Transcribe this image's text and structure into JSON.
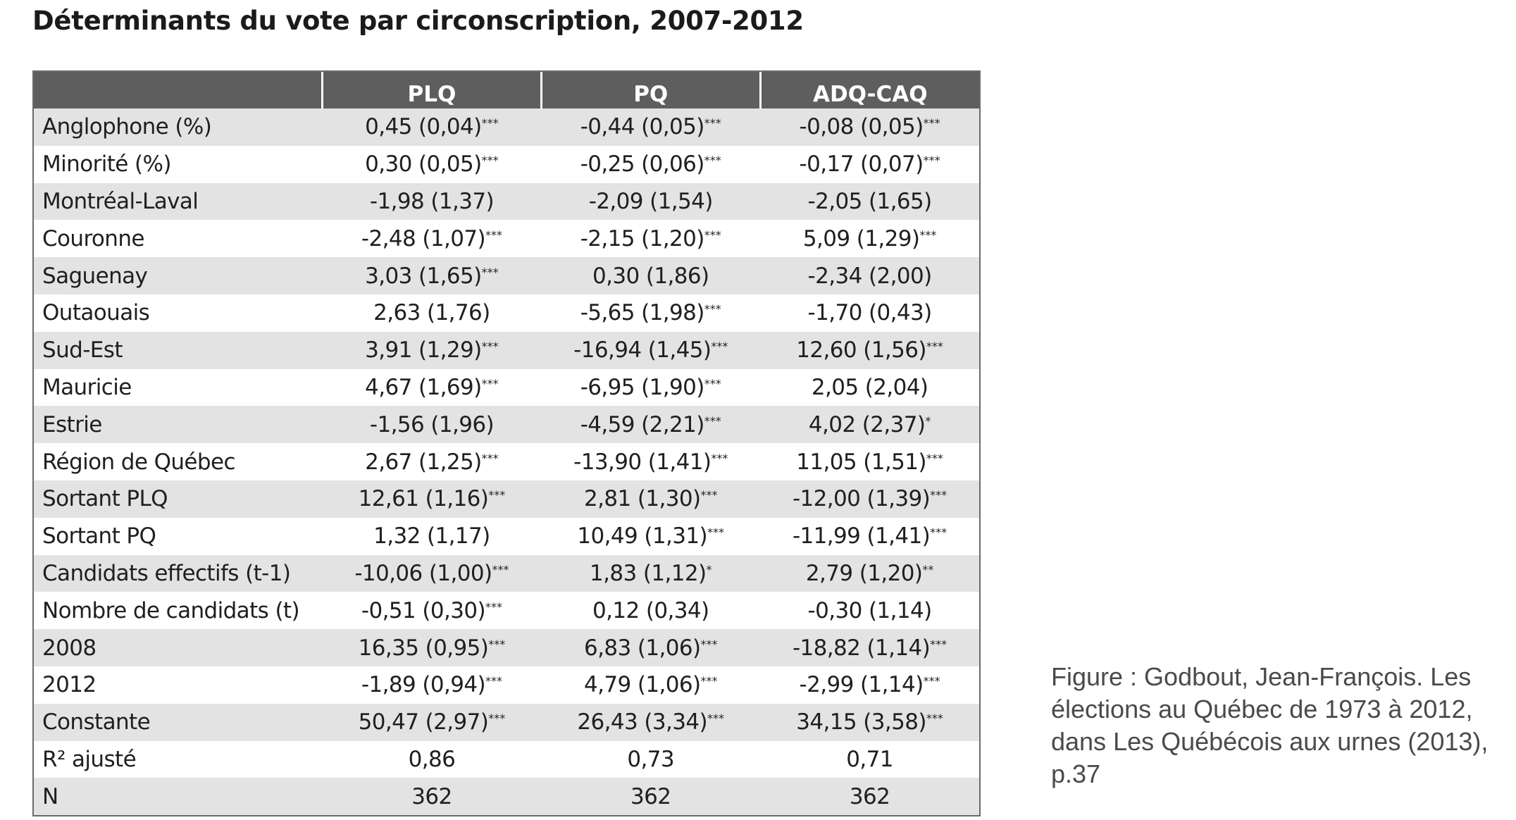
{
  "title": "Déterminants du vote par circonscription, 2007-2012",
  "table": {
    "headers": [
      "",
      "PLQ",
      "PQ",
      "ADQ-CAQ"
    ],
    "rows": [
      {
        "label": "Anglophone (%)",
        "plq": "0,45 (0,04)",
        "plq_sig": "***",
        "pq": "-0,44 (0,05)",
        "pq_sig": "***",
        "adq": "-0,08 (0,05)",
        "adq_sig": "***"
      },
      {
        "label": "Minorité (%)",
        "plq": "0,30 (0,05)",
        "plq_sig": "***",
        "pq": "-0,25 (0,06)",
        "pq_sig": "***",
        "adq": "-0,17 (0,07)",
        "adq_sig": "***"
      },
      {
        "label": "Montréal-Laval",
        "plq": "-1,98 (1,37)",
        "plq_sig": "",
        "pq": "-2,09 (1,54)",
        "pq_sig": "",
        "adq": "-2,05 (1,65)",
        "adq_sig": ""
      },
      {
        "label": "Couronne",
        "plq": "-2,48 (1,07)",
        "plq_sig": "***",
        "pq": "-2,15 (1,20)",
        "pq_sig": "***",
        "adq": "5,09 (1,29)",
        "adq_sig": "***"
      },
      {
        "label": "Saguenay",
        "plq": "3,03 (1,65)",
        "plq_sig": "***",
        "pq": "0,30 (1,86)",
        "pq_sig": "",
        "adq": "-2,34 (2,00)",
        "adq_sig": ""
      },
      {
        "label": "Outaouais",
        "plq": "2,63 (1,76)",
        "plq_sig": "",
        "pq": "-5,65 (1,98)",
        "pq_sig": "***",
        "adq": "-1,70 (0,43)",
        "adq_sig": ""
      },
      {
        "label": "Sud-Est",
        "plq": "3,91 (1,29)",
        "plq_sig": "***",
        "pq": "-16,94 (1,45)",
        "pq_sig": "***",
        "adq": "12,60 (1,56)",
        "adq_sig": "***"
      },
      {
        "label": "Mauricie",
        "plq": "4,67 (1,69)",
        "plq_sig": "***",
        "pq": "-6,95 (1,90)",
        "pq_sig": "***",
        "adq": "2,05 (2,04)",
        "adq_sig": ""
      },
      {
        "label": "Estrie",
        "plq": "-1,56 (1,96)",
        "plq_sig": "",
        "pq": "-4,59 (2,21)",
        "pq_sig": "***",
        "adq": "4,02 (2,37)",
        "adq_sig": "*"
      },
      {
        "label": "Région de Québec",
        "plq": "2,67 (1,25)",
        "plq_sig": "***",
        "pq": "-13,90 (1,41)",
        "pq_sig": "***",
        "adq": "11,05 (1,51)",
        "adq_sig": "***"
      },
      {
        "label": "Sortant PLQ",
        "plq": "12,61 (1,16)",
        "plq_sig": "***",
        "pq": "2,81 (1,30)",
        "pq_sig": "***",
        "adq": "-12,00 (1,39)",
        "adq_sig": "***"
      },
      {
        "label": "Sortant PQ",
        "plq": "1,32 (1,17)",
        "plq_sig": "",
        "pq": "10,49 (1,31)",
        "pq_sig": "***",
        "adq": "-11,99 (1,41)",
        "adq_sig": "***"
      },
      {
        "label": "Candidats effectifs (t-1)",
        "plq": "-10,06 (1,00)",
        "plq_sig": "***",
        "pq": "1,83 (1,12)",
        "pq_sig": "*",
        "adq": "2,79 (1,20)",
        "adq_sig": "**"
      },
      {
        "label": "Nombre de candidats (t)",
        "plq": "-0,51 (0,30)",
        "plq_sig": "***",
        "pq": "0,12 (0,34)",
        "pq_sig": "",
        "adq": "-0,30 (1,14)",
        "adq_sig": ""
      },
      {
        "label": "2008",
        "plq": "16,35 (0,95)",
        "plq_sig": "***",
        "pq": "6,83 (1,06)",
        "pq_sig": "***",
        "adq": "-18,82 (1,14)",
        "adq_sig": "***"
      },
      {
        "label": "2012",
        "plq": "-1,89 (0,94)",
        "plq_sig": "***",
        "pq": "4,79 (1,06)",
        "pq_sig": "***",
        "adq": "-2,99 (1,14)",
        "adq_sig": "***"
      },
      {
        "label": "Constante",
        "plq": "50,47 (2,97)",
        "plq_sig": "***",
        "pq": "26,43 (3,34)",
        "pq_sig": "***",
        "adq": "34,15 (3,58)",
        "adq_sig": "***"
      },
      {
        "label": "R² ajusté",
        "plq": "0,86",
        "plq_sig": "",
        "pq": "0,73",
        "pq_sig": "",
        "adq": "0,71",
        "adq_sig": ""
      },
      {
        "label": "N",
        "plq": "362",
        "plq_sig": "",
        "pq": "362",
        "pq_sig": "",
        "adq": "362",
        "adq_sig": ""
      }
    ]
  },
  "caption": "Figure : Godbout, Jean-François. Les élections au Québec de 1973  à 2012, dans Les Québécois aux urnes (2013), p.37"
}
